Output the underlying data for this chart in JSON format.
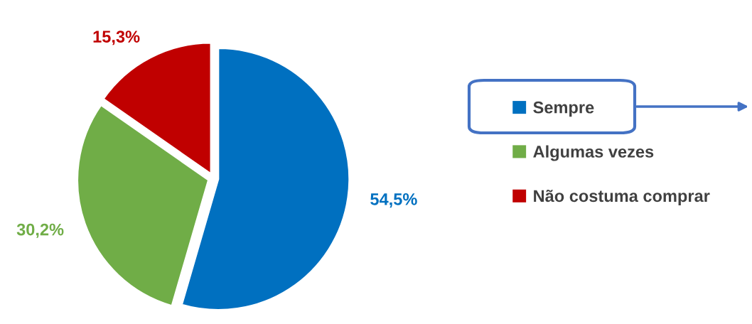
{
  "chart_data": {
    "type": "pie",
    "categories": [
      "Sempre",
      "Algumas vezes",
      "Não costuma comprar"
    ],
    "values": [
      54.5,
      30.2,
      15.3
    ],
    "colors": [
      "#0070c0",
      "#70ad47",
      "#c00000"
    ],
    "value_labels": [
      "54,5%",
      "30,2%",
      "15,3%"
    ],
    "legend": "right"
  }
}
